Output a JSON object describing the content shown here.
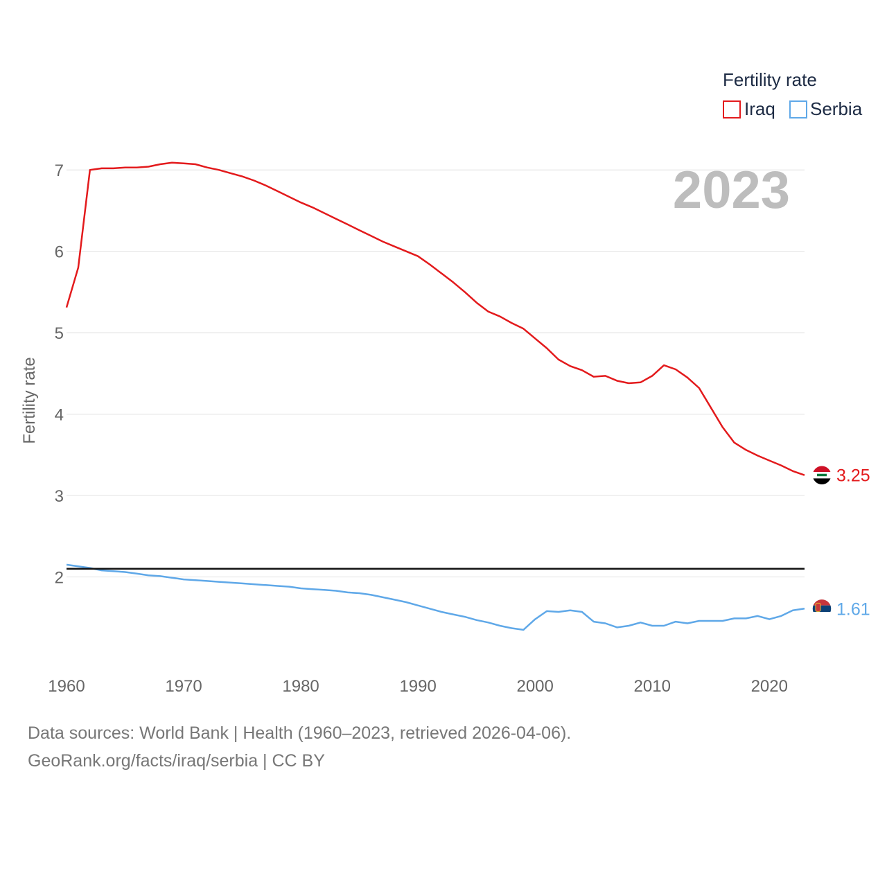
{
  "chart_data": {
    "type": "line",
    "title": "",
    "year_overlay": "2023",
    "xlabel": "",
    "ylabel": "Fertility rate",
    "xlim": [
      1960,
      2023
    ],
    "ylim": [
      1.0,
      7.3
    ],
    "xticks": [
      1960,
      1970,
      1980,
      1990,
      2000,
      2010,
      2020
    ],
    "yticks": [
      2,
      3,
      4,
      5,
      6,
      7
    ],
    "grid": true,
    "reference_line": 2.1,
    "legend": {
      "title": "Fertility rate",
      "position": "top-right",
      "items": [
        {
          "name": "Iraq",
          "color": "#e31a1c"
        },
        {
          "name": "Serbia",
          "color": "#5fa8e8"
        }
      ]
    },
    "x": [
      1960,
      1961,
      1962,
      1963,
      1964,
      1965,
      1966,
      1967,
      1968,
      1969,
      1970,
      1971,
      1972,
      1973,
      1974,
      1975,
      1976,
      1977,
      1978,
      1979,
      1980,
      1981,
      1982,
      1983,
      1984,
      1985,
      1986,
      1987,
      1988,
      1989,
      1990,
      1991,
      1992,
      1993,
      1994,
      1995,
      1996,
      1997,
      1998,
      1999,
      2000,
      2001,
      2002,
      2003,
      2004,
      2005,
      2006,
      2007,
      2008,
      2009,
      2010,
      2011,
      2012,
      2013,
      2014,
      2015,
      2016,
      2017,
      2018,
      2019,
      2020,
      2021,
      2022,
      2023
    ],
    "series": [
      {
        "name": "Iraq",
        "color": "#e31a1c",
        "end_label": "3.25",
        "flag_icon": "iraq-flag-icon",
        "values": [
          5.31,
          5.8,
          7.0,
          7.02,
          7.02,
          7.03,
          7.03,
          7.04,
          7.07,
          7.09,
          7.08,
          7.07,
          7.03,
          7.0,
          6.96,
          6.92,
          6.87,
          6.81,
          6.74,
          6.67,
          6.6,
          6.54,
          6.47,
          6.4,
          6.33,
          6.26,
          6.19,
          6.12,
          6.06,
          6.0,
          5.94,
          5.84,
          5.73,
          5.62,
          5.5,
          5.37,
          5.26,
          5.2,
          5.12,
          5.05,
          4.93,
          4.81,
          4.67,
          4.59,
          4.54,
          4.46,
          4.47,
          4.41,
          4.38,
          4.39,
          4.47,
          4.6,
          4.55,
          4.45,
          4.32,
          4.08,
          3.84,
          3.65,
          3.56,
          3.49,
          3.43,
          3.37,
          3.3,
          3.25
        ]
      },
      {
        "name": "Serbia",
        "color": "#5fa8e8",
        "end_label": "1.61",
        "flag_icon": "serbia-flag-icon",
        "values": [
          2.15,
          2.13,
          2.11,
          2.08,
          2.07,
          2.06,
          2.04,
          2.02,
          2.01,
          1.99,
          1.97,
          1.96,
          1.95,
          1.94,
          1.93,
          1.92,
          1.91,
          1.9,
          1.89,
          1.88,
          1.86,
          1.85,
          1.84,
          1.83,
          1.81,
          1.8,
          1.78,
          1.75,
          1.72,
          1.69,
          1.65,
          1.61,
          1.57,
          1.54,
          1.51,
          1.47,
          1.44,
          1.4,
          1.37,
          1.35,
          1.48,
          1.58,
          1.57,
          1.59,
          1.57,
          1.45,
          1.43,
          1.38,
          1.4,
          1.44,
          1.4,
          1.4,
          1.45,
          1.43,
          1.46,
          1.46,
          1.46,
          1.49,
          1.49,
          1.52,
          1.48,
          1.52,
          1.59,
          1.61
        ]
      }
    ]
  },
  "footer": {
    "source": "Data sources: World Bank | Health (1960–2023, retrieved 2026-04-06).",
    "credit": "GeoRank.org/facts/iraq/serbia | CC BY"
  }
}
